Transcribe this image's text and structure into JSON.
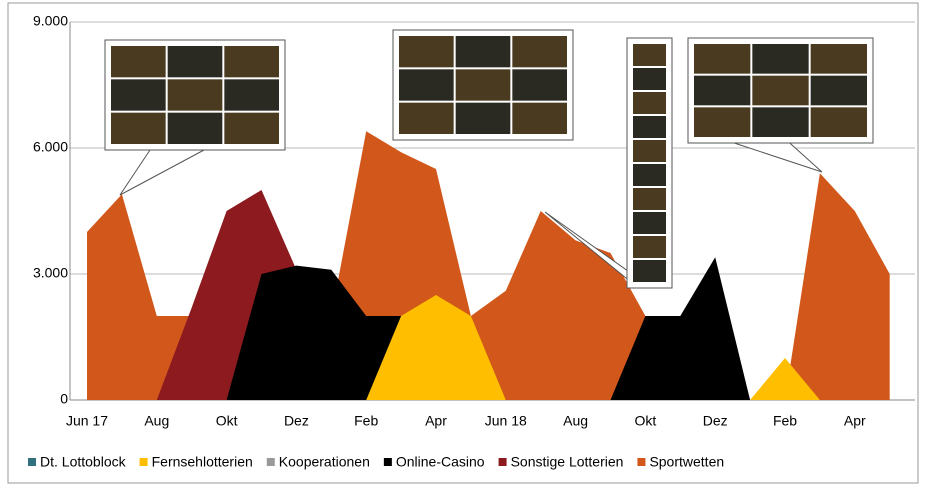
{
  "chart_data": {
    "type": "area",
    "categories": [
      "Jun 17",
      null,
      "Aug",
      null,
      "Okt",
      null,
      "Dez",
      null,
      "Feb",
      null,
      "Apr",
      null,
      "Jun 18",
      null,
      "Aug",
      null,
      "Okt",
      null,
      "Dez",
      null,
      "Feb",
      null,
      "Apr",
      null
    ],
    "series": [
      {
        "name": "Dt. Lottoblock",
        "color": "#2f6f7e",
        "values": [
          0,
          0,
          0,
          0,
          0,
          0,
          0,
          0,
          0,
          0,
          0,
          0,
          0,
          0,
          0,
          0,
          0,
          0,
          0,
          0,
          0,
          0,
          0,
          0
        ]
      },
      {
        "name": "Sportwetten",
        "color": "#d2571a",
        "values": [
          4000,
          4900,
          2000,
          2000,
          0,
          0,
          0,
          2000,
          6400,
          5900,
          5500,
          2000,
          2600,
          4500,
          3800,
          3500,
          2000,
          0,
          0,
          0,
          0,
          5400,
          4500,
          3000
        ]
      },
      {
        "name": "Sonstige Lotterien",
        "color": "#8c1a1f",
        "values": [
          0,
          0,
          0,
          2200,
          4500,
          5000,
          3100,
          0,
          0,
          0,
          0,
          0,
          0,
          0,
          0,
          0,
          0,
          0,
          0,
          0,
          0,
          0,
          0,
          0
        ]
      },
      {
        "name": "Kooperationen",
        "color": "#999999",
        "values": [
          0,
          0,
          0,
          0,
          0,
          0,
          0,
          0,
          0,
          0,
          0,
          0,
          0,
          0,
          0,
          0,
          0,
          0,
          0,
          0,
          0,
          0,
          0,
          0
        ]
      },
      {
        "name": "Online-Casino",
        "color": "#000000",
        "values": [
          0,
          0,
          0,
          0,
          0,
          3000,
          3200,
          3100,
          2000,
          2000,
          0,
          0,
          0,
          0,
          0,
          0,
          2000,
          2000,
          3400,
          0,
          0,
          0,
          0,
          0
        ]
      },
      {
        "name": "Fernsehlotterien",
        "color": "#ffbf00",
        "values": [
          0,
          0,
          0,
          0,
          0,
          0,
          0,
          0,
          0,
          2000,
          2500,
          2000,
          0,
          0,
          0,
          0,
          0,
          0,
          0,
          0,
          1000,
          0,
          0,
          0
        ]
      }
    ],
    "legend_order": [
      "Dt. Lottoblock",
      "Fernsehlotterien",
      "Kooperationen",
      "Online-Casino",
      "Sonstige Lotterien",
      "Sportwetten"
    ],
    "ylim": [
      0,
      9000
    ],
    "yticks": [
      0,
      {
        "value": 3000,
        "label": "3.000"
      },
      {
        "value": 6000,
        "label": "6.000"
      },
      {
        "value": 9000,
        "label": "9.000"
      }
    ],
    "grid": true
  }
}
